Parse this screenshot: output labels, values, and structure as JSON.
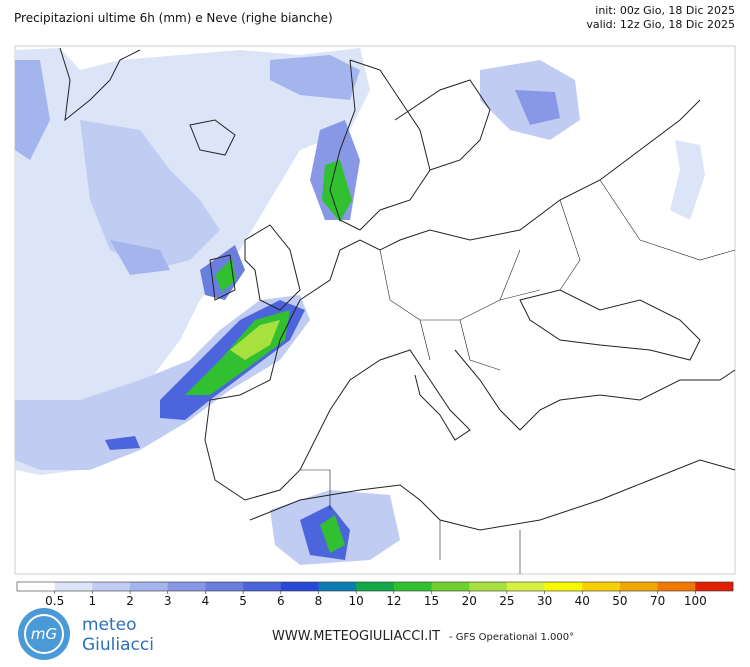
{
  "header": {
    "title": "Precipitazioni ultime 6h (mm) e Neve (righe bianche)",
    "init": "init: 00z Gio, 18 Dic 2025",
    "valid": "valid: 12z Gio, 18 Dic 2025"
  },
  "colorbar": {
    "labels": [
      0.5,
      1,
      2,
      3,
      4,
      5,
      6,
      8,
      10,
      12,
      15,
      20,
      25,
      30,
      40,
      50,
      70,
      100
    ],
    "colors": [
      "#ffffff",
      "#dce4f8",
      "#c0ccf2",
      "#a4b4ec",
      "#8898e6",
      "#6a7ee0",
      "#4c64dc",
      "#2a48d8",
      "#0a7cb0",
      "#10a848",
      "#30c030",
      "#70d030",
      "#a8e040",
      "#d8f040",
      "#f8f800",
      "#f8d000",
      "#f0a800",
      "#f07800",
      "#e02000"
    ]
  },
  "footer": {
    "logo": "mG",
    "brand_top": "meteo",
    "brand_bottom": "Giuliacci",
    "website": "WWW.METEOGIULIACCI.IT",
    "model": "- GFS Operational 1.000°"
  }
}
